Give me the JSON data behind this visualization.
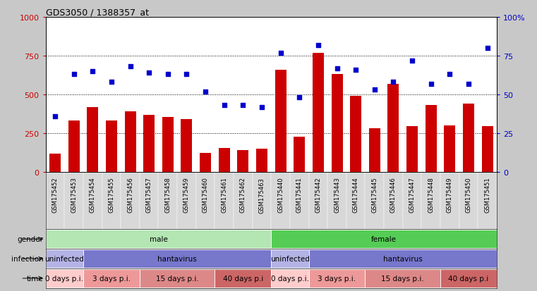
{
  "title": "GDS3050 / 1388357_at",
  "samples": [
    "GSM175452",
    "GSM175453",
    "GSM175454",
    "GSM175455",
    "GSM175456",
    "GSM175457",
    "GSM175458",
    "GSM175459",
    "GSM175460",
    "GSM175461",
    "GSM175462",
    "GSM175463",
    "GSM175440",
    "GSM175441",
    "GSM175442",
    "GSM175443",
    "GSM175444",
    "GSM175445",
    "GSM175446",
    "GSM175447",
    "GSM175448",
    "GSM175449",
    "GSM175450",
    "GSM175451"
  ],
  "counts": [
    120,
    330,
    420,
    330,
    390,
    370,
    355,
    340,
    125,
    155,
    140,
    150,
    660,
    230,
    770,
    630,
    490,
    280,
    570,
    295,
    430,
    300,
    440,
    295
  ],
  "percentiles": [
    36,
    63,
    65,
    58,
    68,
    64,
    63,
    63,
    52,
    43,
    43,
    42,
    77,
    48,
    82,
    67,
    66,
    53,
    58,
    72,
    57,
    63,
    57,
    80
  ],
  "bar_color": "#cc0000",
  "dot_color": "#0000cc",
  "ylim_left": [
    0,
    1000
  ],
  "ylim_right": [
    0,
    100
  ],
  "yticks_left": [
    0,
    250,
    500,
    750,
    1000
  ],
  "yticks_right": [
    0,
    25,
    50,
    75,
    100
  ],
  "ytick_labels_right": [
    "0",
    "25",
    "50",
    "75",
    "100%"
  ],
  "grid_lines": [
    250,
    500,
    750
  ],
  "fig_bg": "#c8c8c8",
  "plot_bg": "#ffffff",
  "xtick_bg": "#c8c8c8",
  "gender_segs": [
    {
      "start": 0,
      "end": 12,
      "label": "male",
      "color": "#b3e6b3"
    },
    {
      "start": 12,
      "end": 24,
      "label": "female",
      "color": "#55cc55"
    }
  ],
  "infection_segs": [
    {
      "start": 0,
      "end": 2,
      "label": "uninfected",
      "color": "#b3b3e6"
    },
    {
      "start": 2,
      "end": 12,
      "label": "hantavirus",
      "color": "#7777cc"
    },
    {
      "start": 12,
      "end": 14,
      "label": "uninfected",
      "color": "#b3b3e6"
    },
    {
      "start": 14,
      "end": 24,
      "label": "hantavirus",
      "color": "#7777cc"
    }
  ],
  "time_segs": [
    {
      "start": 0,
      "end": 2,
      "label": "0 days p.i.",
      "color": "#ffcccc"
    },
    {
      "start": 2,
      "end": 5,
      "label": "3 days p.i.",
      "color": "#ee9999"
    },
    {
      "start": 5,
      "end": 9,
      "label": "15 days p.i.",
      "color": "#dd8888"
    },
    {
      "start": 9,
      "end": 12,
      "label": "40 days p.i",
      "color": "#cc6666"
    },
    {
      "start": 12,
      "end": 14,
      "label": "0 days p.i.",
      "color": "#ffcccc"
    },
    {
      "start": 14,
      "end": 17,
      "label": "3 days p.i.",
      "color": "#ee9999"
    },
    {
      "start": 17,
      "end": 21,
      "label": "15 days p.i.",
      "color": "#dd8888"
    },
    {
      "start": 21,
      "end": 24,
      "label": "40 days p.i",
      "color": "#cc6666"
    }
  ],
  "legend_count_color": "#cc0000",
  "legend_pct_color": "#0000cc"
}
